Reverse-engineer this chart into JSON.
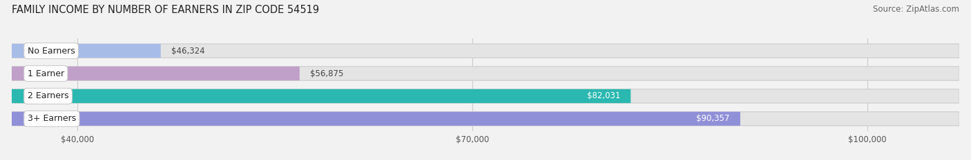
{
  "title": "FAMILY INCOME BY NUMBER OF EARNERS IN ZIP CODE 54519",
  "source": "Source: ZipAtlas.com",
  "categories": [
    "No Earners",
    "1 Earner",
    "2 Earners",
    "3+ Earners"
  ],
  "values": [
    46324,
    56875,
    82031,
    90357
  ],
  "bar_colors": [
    "#a8bce8",
    "#c0a0c8",
    "#2ab8b0",
    "#9090d8"
  ],
  "label_colors": [
    "#444444",
    "#444444",
    "#ffffff",
    "#ffffff"
  ],
  "xmin": 35000,
  "xmax": 107000,
  "xticks": [
    40000,
    70000,
    100000
  ],
  "xtick_labels": [
    "$40,000",
    "$70,000",
    "$100,000"
  ],
  "background_color": "#f2f2f2",
  "bar_bg_color": "#e4e4e4",
  "title_fontsize": 10.5,
  "source_fontsize": 8.5,
  "tick_fontsize": 8.5,
  "bar_label_fontsize": 8.5,
  "category_fontsize": 9
}
